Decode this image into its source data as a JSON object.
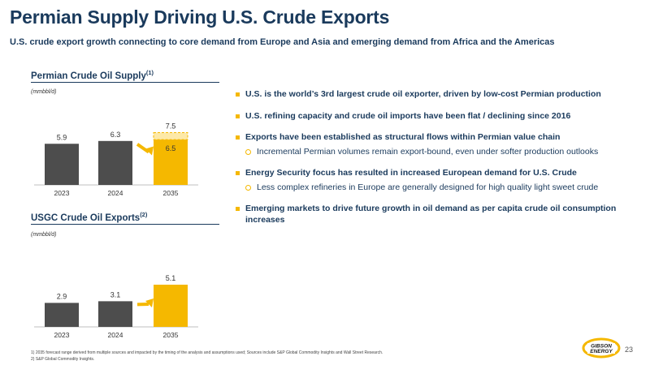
{
  "header": {
    "title": "Permian Supply Driving U.S. Crude Exports",
    "subtitle": "U.S. crude export growth connecting to core demand from Europe and Asia and emerging demand from Africa and the Americas"
  },
  "charts": {
    "supply": {
      "title": "Permian Crude Oil Supply",
      "footnote_ref": "(1)",
      "unit": "(mmbbl/d)"
    },
    "exports": {
      "title": "USGC Crude Oil Exports",
      "footnote_ref": "(2)",
      "unit": "(mmbbl/d)"
    }
  },
  "chart_data": [
    {
      "type": "bar",
      "categories": [
        "2023",
        "2024",
        "2035"
      ],
      "values": [
        5.9,
        6.3,
        6.5
      ],
      "range_top": {
        "category": "2035",
        "value": 7.5
      },
      "ylim": [
        0,
        8
      ],
      "colors": {
        "historical": "#4d4d4d",
        "forecast": "#f5b800",
        "range": "#fde9a8"
      }
    },
    {
      "type": "bar",
      "categories": [
        "2023",
        "2024",
        "2035"
      ],
      "values": [
        2.9,
        3.1,
        5.1
      ],
      "ylim": [
        0,
        5.6
      ],
      "colors": {
        "historical": "#4d4d4d",
        "forecast": "#f5b800"
      }
    }
  ],
  "bullets": [
    {
      "text": "U.S. is the world’s 3rd largest crude oil exporter, driven by low-cost Permian production",
      "subs": []
    },
    {
      "text": "U.S. refining capacity and crude oil imports have been flat / declining since 2016",
      "subs": []
    },
    {
      "text": "Exports have been established as structural flows within Permian value chain",
      "subs": [
        "Incremental Permian volumes remain export-bound, even under softer production outlooks"
      ]
    },
    {
      "text": "Energy Security focus has resulted in increased European demand for U.S. Crude",
      "subs": [
        "Less complex refineries in Europe are generally designed for high quality light sweet crude"
      ]
    },
    {
      "text": "Emerging markets to drive future growth in oil demand as per capita crude oil consumption increases",
      "subs": []
    }
  ],
  "footnotes": [
    "1)      2035 forecast range derived from multiple sources and impacted by the timing of the analysis and assumptions used; Sources include S&P Global Commodity Insights and Wall Street Research.",
    "2)      S&P Global Commodity Insights."
  ],
  "page_number": "23",
  "logo": {
    "line1": "GIBSON",
    "line2": "ENERGY",
    "accent": "#f5b800"
  }
}
